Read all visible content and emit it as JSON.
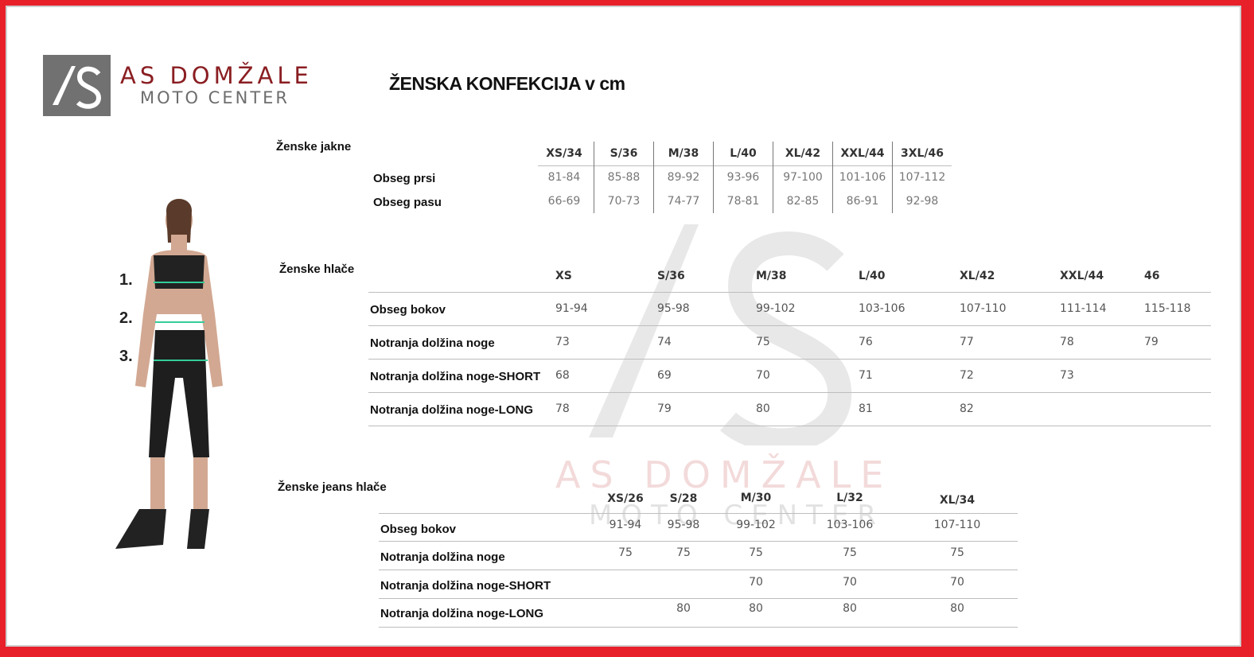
{
  "header": {
    "logo_mark": "AS",
    "brand_name": "AS DOMŽALE",
    "brand_sub": "MOTO CENTER",
    "title": "ŽENSKA KONFEKCIJA v cm"
  },
  "figure": {
    "markers": [
      "1.",
      "2.",
      "3."
    ]
  },
  "watermark": {
    "mark": "AS",
    "name": "AS DOMŽALE",
    "sub": "MOTO CENTER"
  },
  "jackets": {
    "section": "Ženske jakne",
    "sizes": [
      "XS/34",
      "S/36",
      "M/38",
      "L/40",
      "XL/42",
      "XXL/44",
      "3XL/46"
    ],
    "rows": [
      {
        "label": "Obseg prsi",
        "values": [
          "81-84",
          "85-88",
          "89-92",
          "93-96",
          "97-100",
          "101-106",
          "107-112"
        ]
      },
      {
        "label": "Obseg pasu",
        "values": [
          "66-69",
          "70-73",
          "74-77",
          "78-81",
          "82-85",
          "86-91",
          "92-98"
        ]
      }
    ]
  },
  "pants": {
    "section": "Ženske hlače",
    "sizes": [
      "XS",
      "S/36",
      "M/38",
      "L/40",
      "XL/42",
      "XXL/44",
      "46"
    ],
    "rows": [
      {
        "label": "Obseg bokov",
        "values": [
          "91-94",
          "95-98",
          "99-102",
          "103-106",
          "107-110",
          "111-114",
          "115-118"
        ]
      },
      {
        "label": "Notranja dolžina noge",
        "values": [
          "73",
          "74",
          "75",
          "76",
          "77",
          "78",
          "79"
        ]
      },
      {
        "label": "Notranja dolžina noge-SHORT",
        "values": [
          "68",
          "69",
          "70",
          "71",
          "72",
          "73",
          ""
        ]
      },
      {
        "label": "Notranja dolžina noge-LONG",
        "values": [
          "78",
          "79",
          "80",
          "81",
          "82",
          "",
          ""
        ]
      }
    ]
  },
  "jeans": {
    "section": "Ženske jeans hlače",
    "sizes": [
      "XS/26",
      "S/28",
      "M/30",
      "L/32",
      "XL/34"
    ],
    "rows": [
      {
        "label": "Obseg bokov",
        "values": [
          "91-94",
          "95-98",
          "99-102",
          "103-106",
          "107-110"
        ]
      },
      {
        "label": "Notranja dolžina noge",
        "values": [
          "75",
          "75",
          "75",
          "75",
          "75"
        ]
      },
      {
        "label": "Notranja dolžina noge-SHORT",
        "values": [
          "",
          "",
          "70",
          "70",
          "70"
        ]
      },
      {
        "label": "Notranja dolžina noge-LONG",
        "values": [
          "",
          "80",
          "80",
          "80",
          "80"
        ]
      }
    ]
  }
}
